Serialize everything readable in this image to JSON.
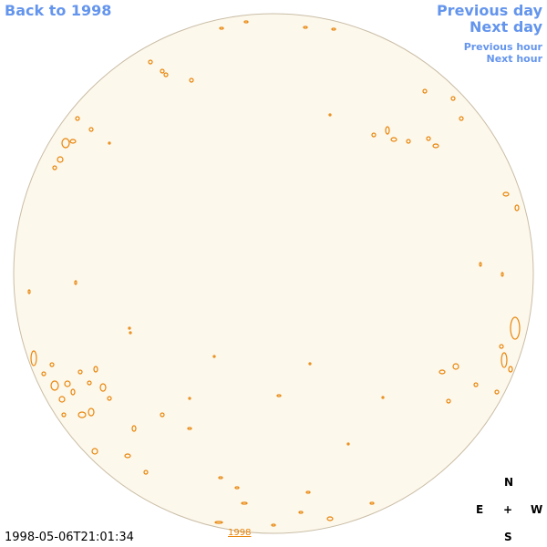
{
  "navigation": {
    "back": "Back to 1998",
    "previous_day": "Previous day",
    "next_day": "Next day",
    "previous_hour": "Previous hour",
    "next_hour": "Next hour"
  },
  "compass": {
    "north": "N",
    "east": "E",
    "center": "+",
    "west": "W",
    "south": "S"
  },
  "timestamp": "1998-05-06T21:01:34",
  "year_link": "1998"
}
